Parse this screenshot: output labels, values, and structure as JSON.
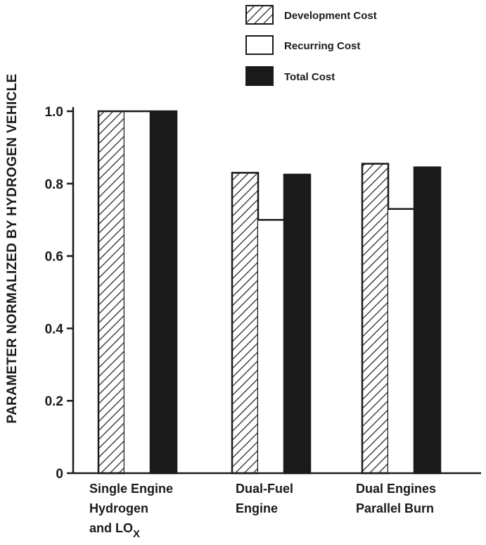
{
  "chart_data": {
    "type": "bar",
    "ylabel": "PARAMETER NORMALIZED BY HYDROGEN VEHICLE",
    "ylim": [
      0,
      1.0
    ],
    "yticks": [
      "0",
      "0.2",
      "0.4",
      "0.6",
      "0.8",
      "1.0"
    ],
    "categories": [
      [
        "Single Engine",
        "Hydrogen",
        "and LO"
      ],
      [
        "Dual-Fuel",
        "Engine"
      ],
      [
        "Dual Engines",
        "Parallel Burn"
      ]
    ],
    "category_subscript": "X",
    "series": [
      {
        "name": "Development Cost",
        "style": "hatched",
        "values": [
          1.0,
          0.83,
          0.855
        ]
      },
      {
        "name": "Recurring Cost",
        "style": "open",
        "values": [
          1.0,
          0.7,
          0.73
        ]
      },
      {
        "name": "Total Cost",
        "style": "solid",
        "values": [
          1.0,
          0.825,
          0.845
        ]
      }
    ],
    "legend_position": "top-right",
    "grid": false,
    "colors": {
      "ink": "#1a1a1a",
      "background": "#ffffff"
    }
  }
}
